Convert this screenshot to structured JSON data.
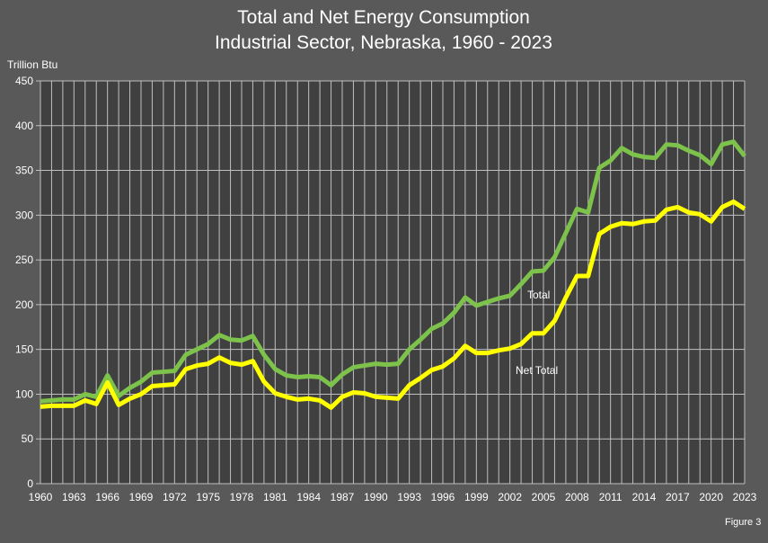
{
  "chart_data": {
    "type": "line",
    "title": "Total and Net Energy Consumption",
    "subtitle": "Industrial Sector, Nebraska, 1960 - 2023",
    "ylabel": "Trillion Btu",
    "xlabel": "",
    "footnote": "Figure 3",
    "ylim": [
      0,
      450
    ],
    "yticks": [
      "0",
      "50",
      "100",
      "150",
      "200",
      "250",
      "300",
      "350",
      "400",
      "450"
    ],
    "xlim": [
      1960,
      2023
    ],
    "xticks": [
      "1960",
      "1963",
      "1966",
      "1969",
      "1972",
      "1975",
      "1978",
      "1981",
      "1984",
      "1987",
      "1990",
      "1993",
      "1996",
      "1999",
      "2002",
      "2005",
      "2008",
      "2011",
      "2014",
      "2017",
      "2020",
      "2023"
    ],
    "grid": true,
    "legend": "inline labels",
    "x": [
      1960,
      1961,
      1962,
      1963,
      1964,
      1965,
      1966,
      1967,
      1968,
      1969,
      1970,
      1971,
      1972,
      1973,
      1974,
      1975,
      1976,
      1977,
      1978,
      1979,
      1980,
      1981,
      1982,
      1983,
      1984,
      1985,
      1986,
      1987,
      1988,
      1989,
      1990,
      1991,
      1992,
      1993,
      1994,
      1995,
      1996,
      1997,
      1998,
      1999,
      2000,
      2001,
      2002,
      2003,
      2004,
      2005,
      2006,
      2007,
      2008,
      2009,
      2010,
      2011,
      2012,
      2013,
      2014,
      2015,
      2016,
      2017,
      2018,
      2019,
      2020,
      2021,
      2022,
      2023
    ],
    "series": [
      {
        "name": "Total",
        "color": "#7dc24b",
        "values": [
          92,
          93,
          94,
          94,
          100,
          97,
          121,
          98,
          107,
          114,
          124,
          125,
          126,
          144,
          150,
          156,
          166,
          161,
          160,
          165,
          144,
          128,
          121,
          119,
          120,
          119,
          110,
          122,
          130,
          132,
          134,
          133,
          134,
          150,
          161,
          173,
          179,
          191,
          208,
          199,
          203,
          207,
          210,
          223,
          237,
          238,
          253,
          280,
          307,
          303,
          353,
          361,
          375,
          368,
          365,
          364,
          379,
          378,
          372,
          367,
          357,
          379,
          382,
          366
        ]
      },
      {
        "name": "Net Total",
        "color": "#ffff00",
        "values": [
          86,
          87,
          87,
          87,
          93,
          89,
          113,
          88,
          95,
          100,
          109,
          110,
          111,
          128,
          132,
          134,
          141,
          135,
          133,
          137,
          114,
          101,
          97,
          94,
          95,
          93,
          85,
          97,
          102,
          101,
          97,
          96,
          95,
          110,
          118,
          127,
          131,
          140,
          154,
          146,
          146,
          149,
          151,
          156,
          168,
          168,
          182,
          208,
          232,
          232,
          279,
          287,
          291,
          290,
          293,
          294,
          306,
          309,
          303,
          301,
          293,
          309,
          315,
          307
        ]
      }
    ]
  }
}
